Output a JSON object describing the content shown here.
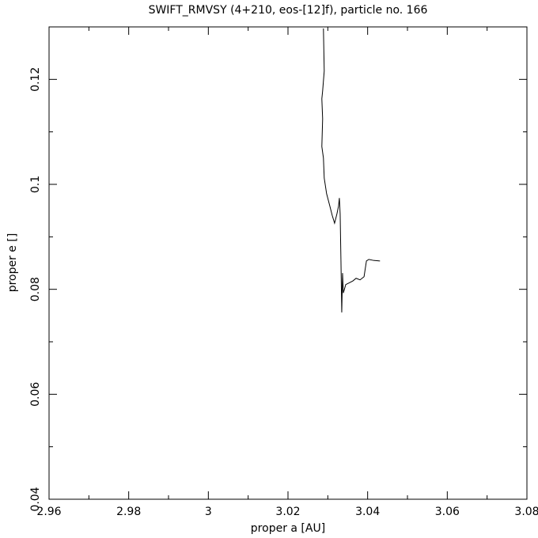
{
  "chart_data": {
    "type": "line",
    "title": "SWIFT_RMVSY (4+210, eos-[12]f), particle no. 166",
    "x_label": "proper a [AU]",
    "y_label": "proper e []",
    "x": [
      3.0289,
      3.0291,
      3.0287,
      3.0285,
      3.0287,
      3.0285,
      3.0289,
      3.0291,
      3.0297,
      3.0305,
      3.0311,
      3.0317,
      3.0323,
      3.0327,
      3.0329,
      3.0331,
      3.0333,
      3.0335,
      3.0337,
      3.0339,
      3.0345,
      3.0353,
      3.0363,
      3.0371,
      3.0381,
      3.0391,
      3.0397,
      3.0403,
      3.0415,
      3.0431
    ],
    "series": [
      {
        "color": "#000000",
        "values": [
          0.1297,
          0.1216,
          0.1178,
          0.1163,
          0.1125,
          0.1072,
          0.105,
          0.1012,
          0.0982,
          0.0959,
          0.0941,
          0.0926,
          0.0944,
          0.0959,
          0.0974,
          0.0944,
          0.0854,
          0.0756,
          0.0831,
          0.0793,
          0.0809,
          0.0812,
          0.0816,
          0.0821,
          0.0818,
          0.0824,
          0.0854,
          0.0857,
          0.0855,
          0.0854
        ]
      }
    ],
    "xlim": [
      2.96,
      3.08
    ],
    "xticks": [
      2.96,
      2.98,
      3,
      3.02,
      3.04,
      3.06,
      3.08
    ],
    "xminorticks": [
      2.97,
      2.99,
      3.01,
      3.03,
      3.05,
      3.07
    ],
    "ylim": [
      0.04,
      0.13
    ],
    "yticks": [
      0.04,
      0.06,
      0.08,
      0.1,
      0.12
    ],
    "yminorticks": [
      0.05,
      0.07,
      0.09,
      0.11
    ]
  }
}
